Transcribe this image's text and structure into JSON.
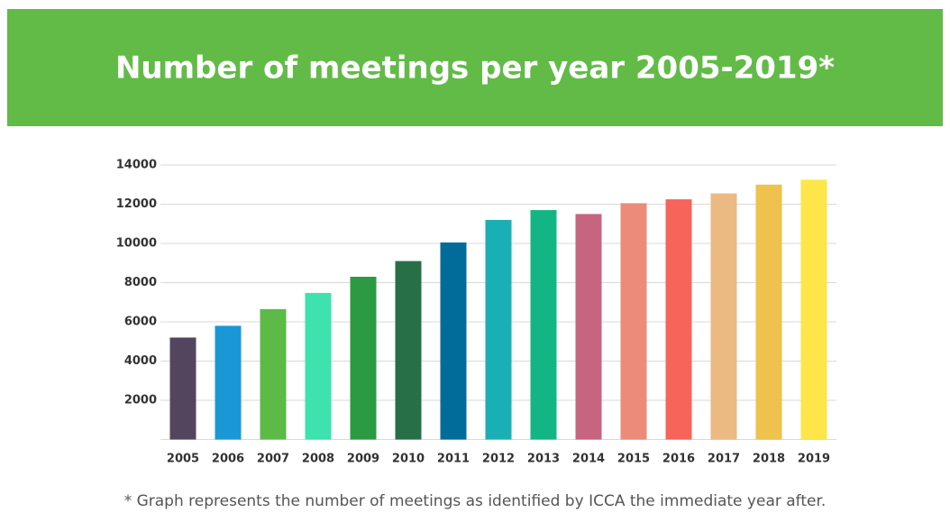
{
  "chart_data": {
    "type": "bar",
    "title": "Number of meetings per year 2005-2019*",
    "footnote": "* Graph represents the number of meetings as identified by ICCA the immediate year after.",
    "categories": [
      "2005",
      "2006",
      "2007",
      "2008",
      "2009",
      "2010",
      "2011",
      "2012",
      "2013",
      "2014",
      "2015",
      "2016",
      "2017",
      "2018",
      "2019"
    ],
    "values": [
      5200,
      5800,
      6650,
      7475,
      8300,
      9100,
      10050,
      11200,
      11700,
      11500,
      12050,
      12250,
      12550,
      13000,
      13250
    ],
    "colors": [
      "#54455f",
      "#1a98d5",
      "#5dba47",
      "#3de2ad",
      "#2c9a42",
      "#266f47",
      "#016c9a",
      "#1aafb4",
      "#14b585",
      "#c76480",
      "#ec8b7a",
      "#f7645a",
      "#ebb982",
      "#efc14d",
      "#fde54a"
    ],
    "ylim": [
      0,
      14000
    ],
    "yticks": [
      2000,
      4000,
      6000,
      8000,
      10000,
      12000,
      14000
    ],
    "grid": true
  }
}
